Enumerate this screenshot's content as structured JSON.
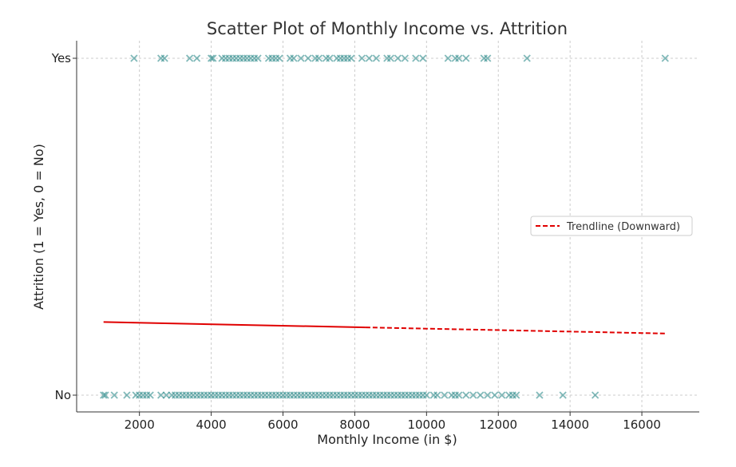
{
  "chart_data": {
    "type": "scatter",
    "title": "Scatter Plot of Monthly Income vs. Attrition",
    "xlabel": "Monthly Income (in $)",
    "ylabel": "Attrition (1 = Yes, 0 = No)",
    "xlim": [
      250,
      17600
    ],
    "ylim": [
      -0.05,
      1.05
    ],
    "x_ticks": [
      2000,
      4000,
      6000,
      8000,
      10000,
      12000,
      14000,
      16000
    ],
    "y_ticks": [
      0,
      1
    ],
    "y_tick_labels": [
      "No",
      "Yes"
    ],
    "grid": true,
    "legend_position": "center-right",
    "colors": {
      "points": "#2e8b8b",
      "trendline": "#e00000"
    },
    "series": [
      {
        "marker": "x",
        "points_yes": [
          1850,
          2600,
          2700,
          3400,
          3600,
          4000,
          4050,
          4300,
          4400,
          4500,
          4600,
          4700,
          4800,
          4900,
          5000,
          5100,
          5200,
          5300,
          5600,
          5700,
          5800,
          5900,
          6200,
          6300,
          6500,
          6700,
          6900,
          7000,
          7200,
          7300,
          7500,
          7600,
          7700,
          7800,
          7900,
          8200,
          8400,
          8600,
          8900,
          9000,
          9200,
          9400,
          9700,
          9900,
          10600,
          10800,
          10900,
          11100,
          11600,
          11700,
          12800,
          16650
        ],
        "points_no": [
          1000,
          1050,
          1300,
          1650,
          1900,
          2000,
          2100,
          2200,
          2300,
          2600,
          2750,
          2900,
          3000,
          3100,
          3200,
          3300,
          3400,
          3500,
          3600,
          3700,
          3800,
          3900,
          4000,
          4100,
          4200,
          4300,
          4400,
          4500,
          4600,
          4700,
          4800,
          4900,
          5000,
          5100,
          5200,
          5300,
          5400,
          5500,
          5600,
          5700,
          5800,
          5900,
          6000,
          6100,
          6200,
          6300,
          6400,
          6500,
          6600,
          6700,
          6800,
          6900,
          7000,
          7100,
          7200,
          7300,
          7400,
          7500,
          7600,
          7700,
          7800,
          7900,
          8000,
          8100,
          8200,
          8300,
          8400,
          8500,
          8600,
          8700,
          8800,
          8900,
          9000,
          9100,
          9200,
          9300,
          9400,
          9500,
          9600,
          9700,
          9800,
          9900,
          10000,
          10200,
          10300,
          10500,
          10700,
          10800,
          10900,
          11100,
          11300,
          11500,
          11700,
          11900,
          12100,
          12300,
          12400,
          12500,
          13150,
          13800,
          14700
        ]
      }
    ],
    "trendline": {
      "name": "Trendline (Downward)",
      "x": [
        1000,
        16650
      ],
      "y": [
        0.217,
        0.183
      ]
    }
  }
}
